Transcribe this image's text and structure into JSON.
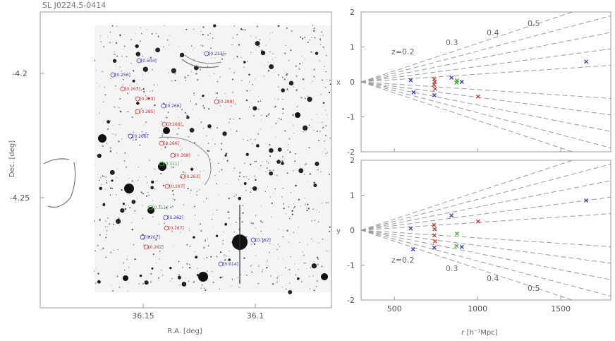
{
  "chart_data": [
    {
      "type": "image",
      "title": "SL J0224.5-0414",
      "xlabel": "R.A. [deg]",
      "ylabel": "Dec. [deg]",
      "xticks": [
        36.15,
        36.1
      ],
      "yticks": [
        -4.2,
        -4.25
      ],
      "galaxies": [
        {
          "label": "[0.213]",
          "color": "#3333cc"
        },
        {
          "label": "[0.504]",
          "color": "#3333cc"
        },
        {
          "label": "[0.256]",
          "color": "#3333cc"
        },
        {
          "label": "[0.263]",
          "color": "#cc3333"
        },
        {
          "label": "[0.283]",
          "color": "#cc3333"
        },
        {
          "label": "[0.285]",
          "color": "#cc3333"
        },
        {
          "label": "[0.266]",
          "color": "#3333cc"
        },
        {
          "label": "[0.268]",
          "color": "#cc3333"
        },
        {
          "label": "[0.266]",
          "color": "#cc3333"
        },
        {
          "label": "[0.266]",
          "color": "#3333cc"
        },
        {
          "label": "[0.266]",
          "color": "#cc3333"
        },
        {
          "label": "[0.268]",
          "color": "#cc3333"
        },
        {
          "label": "[0.311]",
          "color": "#33aa33"
        },
        {
          "label": "[0.263]",
          "color": "#cc3333"
        },
        {
          "label": "[0.267]",
          "color": "#cc3333"
        },
        {
          "label": "[0.311]",
          "color": "#33aa33"
        },
        {
          "label": "[0.262]",
          "color": "#3333cc"
        },
        {
          "label": "[0.267]",
          "color": "#cc3333"
        },
        {
          "label": "[0.207]",
          "color": "#3333cc"
        },
        {
          "label": "[0.262]",
          "color": "#cc3333"
        },
        {
          "label": "[0.362]",
          "color": "#3333cc"
        },
        {
          "label": "[0.614]",
          "color": "#3333cc"
        }
      ]
    },
    {
      "type": "scatter",
      "title": "",
      "xlabel": "",
      "ylabel": "x",
      "xlim": [
        300,
        1800
      ],
      "ylim": [
        -2,
        2
      ],
      "yticks": [
        2,
        1,
        0,
        -1,
        -2
      ],
      "redshift_labels": [
        "z=0.2",
        "0.3",
        "0.4",
        "0.5"
      ],
      "points": [
        {
          "x": 598,
          "y": 0.05,
          "color": "#3333cc"
        },
        {
          "x": 615,
          "y": -0.3,
          "color": "#3333cc"
        },
        {
          "x": 740,
          "y": 0.08,
          "color": "#cc3333"
        },
        {
          "x": 742,
          "y": 0.0,
          "color": "#cc3333"
        },
        {
          "x": 738,
          "y": -0.08,
          "color": "#cc3333"
        },
        {
          "x": 744,
          "y": -0.2,
          "color": "#cc3333"
        },
        {
          "x": 740,
          "y": -0.38,
          "color": "#3333cc"
        },
        {
          "x": 843,
          "y": 0.12,
          "color": "#3333cc"
        },
        {
          "x": 876,
          "y": 0.04,
          "color": "#33aa33"
        },
        {
          "x": 873,
          "y": -0.02,
          "color": "#33aa33"
        },
        {
          "x": 905,
          "y": 0.0,
          "color": "#3333cc"
        },
        {
          "x": 1003,
          "y": -0.42,
          "color": "#cc3333"
        },
        {
          "x": 1652,
          "y": 0.58,
          "color": "#3333cc"
        }
      ]
    },
    {
      "type": "scatter",
      "title": "",
      "xlabel": "r [h⁻¹Mpc]",
      "ylabel": "y",
      "xlim": [
        300,
        1800
      ],
      "ylim": [
        -2,
        2
      ],
      "xticks": [
        500,
        1000,
        1500
      ],
      "yticks": [
        2,
        1,
        0,
        -1,
        -2
      ],
      "redshift_labels": [
        "z=0.2",
        "0.3",
        "0.4",
        "0.5"
      ],
      "points": [
        {
          "x": 598,
          "y": 0.05,
          "color": "#3333cc"
        },
        {
          "x": 612,
          "y": -0.55,
          "color": "#3333cc"
        },
        {
          "x": 738,
          "y": 0.15,
          "color": "#cc3333"
        },
        {
          "x": 742,
          "y": 0.03,
          "color": "#cc3333"
        },
        {
          "x": 740,
          "y": -0.15,
          "color": "#cc3333"
        },
        {
          "x": 744,
          "y": -0.32,
          "color": "#cc3333"
        },
        {
          "x": 740,
          "y": -0.5,
          "color": "#3333cc"
        },
        {
          "x": 843,
          "y": 0.42,
          "color": "#3333cc"
        },
        {
          "x": 876,
          "y": -0.1,
          "color": "#33aa33"
        },
        {
          "x": 873,
          "y": -0.45,
          "color": "#33aa33"
        },
        {
          "x": 905,
          "y": -0.48,
          "color": "#3333cc"
        },
        {
          "x": 1003,
          "y": 0.25,
          "color": "#cc3333"
        },
        {
          "x": 1652,
          "y": 0.85,
          "color": "#3333cc"
        }
      ]
    }
  ]
}
